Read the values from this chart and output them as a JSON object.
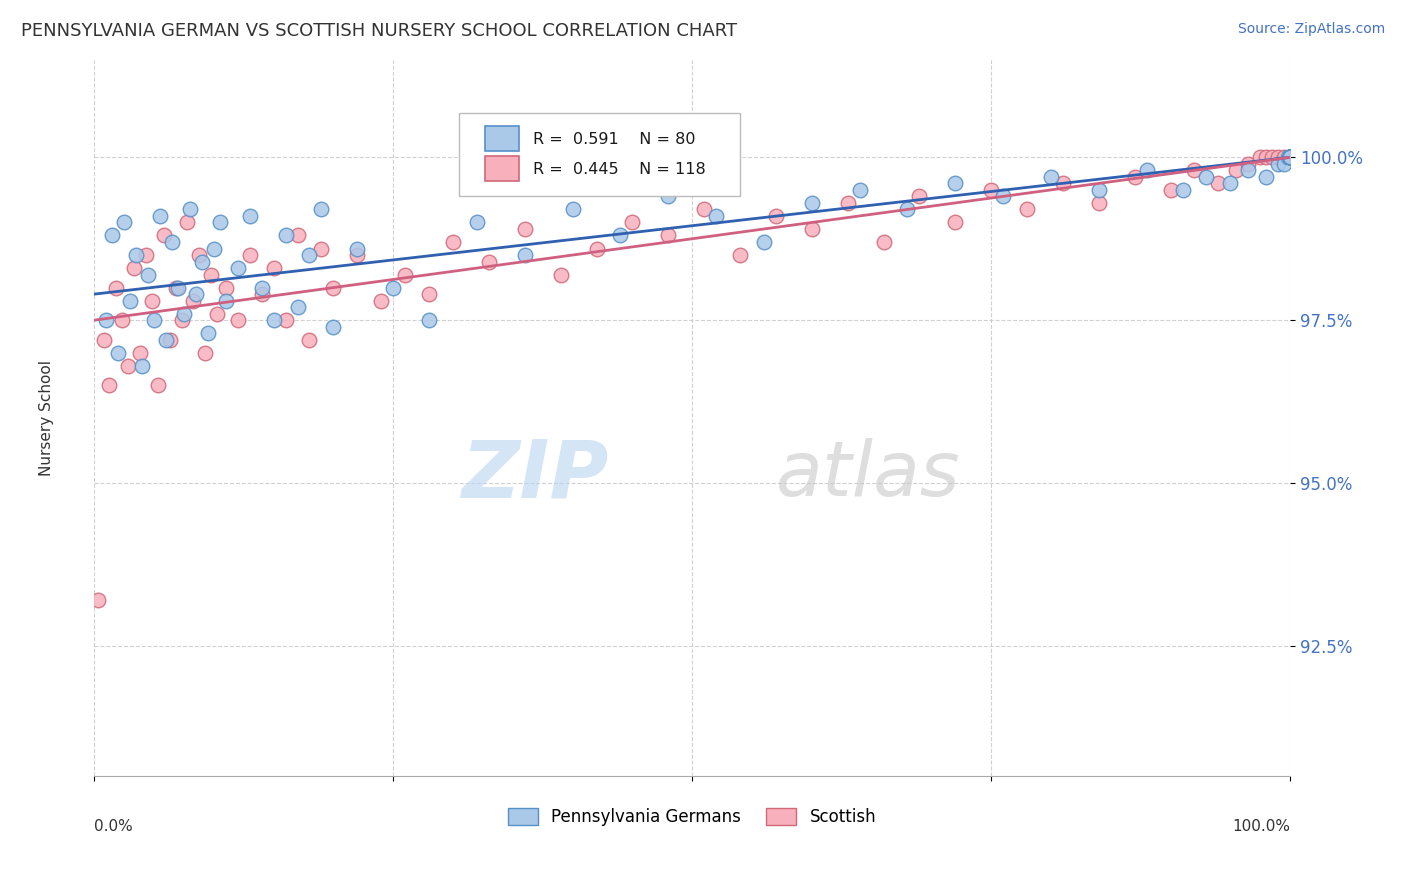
{
  "title": "PENNSYLVANIA GERMAN VS SCOTTISH NURSERY SCHOOL CORRELATION CHART",
  "source": "Source: ZipAtlas.com",
  "ylabel": "Nursery School",
  "legend_entry1": {
    "R": 0.591,
    "N": 80,
    "color": "#8ab4d8"
  },
  "legend_entry2": {
    "R": 0.445,
    "N": 118,
    "color": "#f4a0a8"
  },
  "ytick_labels": [
    "92.5%",
    "95.0%",
    "97.5%",
    "100.0%"
  ],
  "ytick_values": [
    92.5,
    95.0,
    97.5,
    100.0
  ],
  "xlim": [
    0,
    100
  ],
  "ylim": [
    90.5,
    101.5
  ],
  "blue_color": "#aac8e8",
  "blue_edge": "#5590c8",
  "pink_color": "#f8b0bc",
  "pink_edge": "#d06878",
  "line_blue": "#3060b0",
  "line_pink": "#d06080",
  "dot_size": 110,
  "pa_german_x": [
    1.0,
    1.5,
    2.0,
    2.5,
    3.0,
    3.5,
    4.0,
    4.5,
    5.0,
    5.5,
    6.0,
    6.5,
    7.0,
    7.5,
    8.0,
    8.5,
    9.0,
    9.5,
    10.0,
    10.5,
    11.0,
    12.0,
    13.0,
    14.0,
    15.0,
    16.0,
    17.0,
    18.0,
    19.0,
    20.0,
    22.0,
    25.0,
    28.0,
    32.0,
    36.0,
    40.0,
    44.0,
    48.0,
    52.0,
    56.0,
    60.0,
    64.0,
    68.0,
    72.0,
    76.0,
    80.0,
    84.0,
    88.0,
    91.0,
    93.0,
    95.0,
    96.5,
    98.0,
    99.0,
    99.5,
    99.8,
    100.0,
    100.0,
    100.0,
    100.0,
    100.0,
    100.0,
    100.0,
    100.0,
    100.0,
    100.0,
    100.0,
    100.0,
    100.0,
    100.0,
    100.0,
    100.0,
    100.0,
    100.0,
    100.0,
    100.0,
    100.0,
    100.0,
    100.0,
    100.0
  ],
  "pa_german_y": [
    97.5,
    98.8,
    97.0,
    99.0,
    97.8,
    98.5,
    96.8,
    98.2,
    97.5,
    99.1,
    97.2,
    98.7,
    98.0,
    97.6,
    99.2,
    97.9,
    98.4,
    97.3,
    98.6,
    99.0,
    97.8,
    98.3,
    99.1,
    98.0,
    97.5,
    98.8,
    97.7,
    98.5,
    99.2,
    97.4,
    98.6,
    98.0,
    97.5,
    99.0,
    98.5,
    99.2,
    98.8,
    99.4,
    99.1,
    98.7,
    99.3,
    99.5,
    99.2,
    99.6,
    99.4,
    99.7,
    99.5,
    99.8,
    99.5,
    99.7,
    99.6,
    99.8,
    99.7,
    99.9,
    99.9,
    100.0,
    100.0,
    100.0,
    100.0,
    100.0,
    100.0,
    100.0,
    100.0,
    100.0,
    100.0,
    100.0,
    100.0,
    100.0,
    100.0,
    100.0,
    100.0,
    100.0,
    100.0,
    100.0,
    100.0,
    100.0,
    100.0,
    100.0,
    100.0,
    100.0
  ],
  "scottish_x": [
    0.3,
    0.8,
    1.2,
    1.8,
    2.3,
    2.8,
    3.3,
    3.8,
    4.3,
    4.8,
    5.3,
    5.8,
    6.3,
    6.8,
    7.3,
    7.8,
    8.3,
    8.8,
    9.3,
    9.8,
    10.3,
    11.0,
    12.0,
    13.0,
    14.0,
    15.0,
    16.0,
    17.0,
    18.0,
    19.0,
    20.0,
    22.0,
    24.0,
    26.0,
    28.0,
    30.0,
    33.0,
    36.0,
    39.0,
    42.0,
    45.0,
    48.0,
    51.0,
    54.0,
    57.0,
    60.0,
    63.0,
    66.0,
    69.0,
    72.0,
    75.0,
    78.0,
    81.0,
    84.0,
    87.0,
    90.0,
    92.0,
    94.0,
    95.5,
    96.5,
    97.5,
    98.0,
    98.5,
    99.0,
    99.5,
    100.0,
    100.0,
    100.0,
    100.0,
    100.0,
    100.0,
    100.0,
    100.0,
    100.0,
    100.0,
    100.0,
    100.0,
    100.0,
    100.0,
    100.0,
    100.0,
    100.0,
    100.0,
    100.0,
    100.0,
    100.0,
    100.0,
    100.0,
    100.0,
    100.0,
    100.0,
    100.0,
    100.0,
    100.0,
    100.0,
    100.0,
    100.0,
    100.0,
    100.0,
    100.0,
    100.0,
    100.0,
    100.0,
    100.0,
    100.0,
    100.0,
    100.0,
    100.0,
    100.0,
    100.0,
    100.0,
    100.0,
    100.0,
    100.0,
    100.0,
    100.0,
    100.0,
    100.0
  ],
  "scottish_y": [
    93.2,
    97.2,
    96.5,
    98.0,
    97.5,
    96.8,
    98.3,
    97.0,
    98.5,
    97.8,
    96.5,
    98.8,
    97.2,
    98.0,
    97.5,
    99.0,
    97.8,
    98.5,
    97.0,
    98.2,
    97.6,
    98.0,
    97.5,
    98.5,
    97.9,
    98.3,
    97.5,
    98.8,
    97.2,
    98.6,
    98.0,
    98.5,
    97.8,
    98.2,
    97.9,
    98.7,
    98.4,
    98.9,
    98.2,
    98.6,
    99.0,
    98.8,
    99.2,
    98.5,
    99.1,
    98.9,
    99.3,
    98.7,
    99.4,
    99.0,
    99.5,
    99.2,
    99.6,
    99.3,
    99.7,
    99.5,
    99.8,
    99.6,
    99.8,
    99.9,
    100.0,
    100.0,
    100.0,
    100.0,
    100.0,
    100.0,
    100.0,
    100.0,
    100.0,
    100.0,
    100.0,
    100.0,
    100.0,
    100.0,
    100.0,
    100.0,
    100.0,
    100.0,
    100.0,
    100.0,
    100.0,
    100.0,
    100.0,
    100.0,
    100.0,
    100.0,
    100.0,
    100.0,
    100.0,
    100.0,
    100.0,
    100.0,
    100.0,
    100.0,
    100.0,
    100.0,
    100.0,
    100.0,
    100.0,
    100.0,
    100.0,
    100.0,
    100.0,
    100.0,
    100.0,
    100.0,
    100.0,
    100.0,
    100.0,
    100.0,
    100.0,
    100.0,
    100.0,
    100.0,
    100.0,
    100.0,
    100.0,
    100.0
  ],
  "reg_pa_x0": 0,
  "reg_pa_y0": 97.9,
  "reg_pa_x1": 100,
  "reg_pa_y1": 100.0,
  "reg_sc_x0": 0,
  "reg_sc_y0": 97.5,
  "reg_sc_x1": 100,
  "reg_sc_y1": 100.0
}
